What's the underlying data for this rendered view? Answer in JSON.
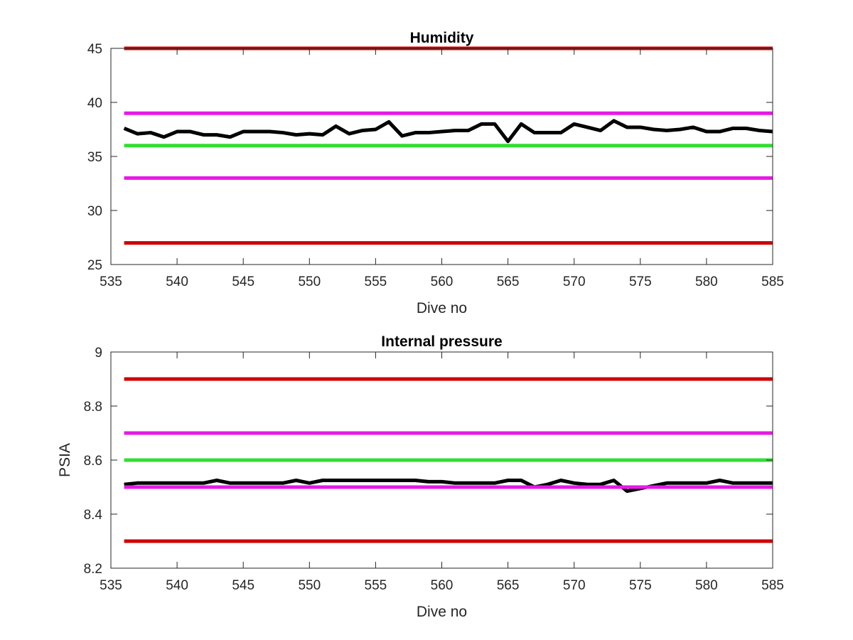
{
  "chart_data": [
    {
      "type": "line",
      "title": "Humidity",
      "xlabel": "Dive no",
      "ylabel": "",
      "xlim": [
        535,
        585
      ],
      "ylim": [
        25,
        45
      ],
      "xticks": [
        535,
        540,
        545,
        550,
        555,
        560,
        565,
        570,
        575,
        580,
        585
      ],
      "yticks": [
        25,
        30,
        35,
        40,
        45
      ],
      "grid": false,
      "reference_lines": [
        {
          "y": 45,
          "color": "#cc0000",
          "x": [
            536,
            585
          ]
        },
        {
          "y": 39,
          "color": "#e619e6",
          "x": [
            536,
            585
          ]
        },
        {
          "y": 36,
          "color": "#33dd33",
          "x": [
            536,
            585
          ]
        },
        {
          "y": 33,
          "color": "#e619e6",
          "x": [
            536,
            585
          ]
        },
        {
          "y": 27,
          "color": "#cc0000",
          "x": [
            536,
            585
          ]
        }
      ],
      "series": [
        {
          "color": "#000000",
          "x": [
            536,
            537,
            538,
            539,
            540,
            541,
            542,
            543,
            544,
            545,
            546,
            547,
            548,
            549,
            550,
            551,
            552,
            553,
            554,
            555,
            556,
            557,
            558,
            559,
            560,
            561,
            562,
            563,
            564,
            565,
            566,
            567,
            568,
            569,
            570,
            571,
            572,
            573,
            574,
            575,
            576,
            577,
            578,
            579,
            580,
            581,
            582,
            583,
            584,
            585
          ],
          "values": [
            37.6,
            37.1,
            37.2,
            36.8,
            37.3,
            37.3,
            37.0,
            37.0,
            36.8,
            37.3,
            37.3,
            37.3,
            37.2,
            37.0,
            37.1,
            37.0,
            37.8,
            37.1,
            37.4,
            37.5,
            38.2,
            36.9,
            37.2,
            37.2,
            37.3,
            37.4,
            37.4,
            38.0,
            38.0,
            36.4,
            38.0,
            37.2,
            37.2,
            37.2,
            38.0,
            37.7,
            37.4,
            38.3,
            37.7,
            37.7,
            37.5,
            37.4,
            37.5,
            37.7,
            37.3,
            37.3,
            37.6,
            37.6,
            37.4,
            37.3
          ]
        }
      ]
    },
    {
      "type": "line",
      "title": "Internal pressure",
      "xlabel": "Dive no",
      "ylabel": "PSIA",
      "xlim": [
        535,
        585
      ],
      "ylim": [
        8.2,
        9
      ],
      "xticks": [
        535,
        540,
        545,
        550,
        555,
        560,
        565,
        570,
        575,
        580,
        585
      ],
      "yticks": [
        8.2,
        8.4,
        8.6,
        8.8,
        9
      ],
      "grid": false,
      "reference_lines": [
        {
          "y": 8.9,
          "color": "#cc0000",
          "x": [
            536,
            585
          ]
        },
        {
          "y": 8.7,
          "color": "#e619e6",
          "x": [
            536,
            585
          ]
        },
        {
          "y": 8.6,
          "color": "#33dd33",
          "x": [
            536,
            585
          ]
        },
        {
          "y": 8.3,
          "color": "#cc0000",
          "x": [
            536,
            585
          ]
        }
      ],
      "series": [
        {
          "color": "#000000",
          "x": [
            536,
            537,
            538,
            539,
            540,
            541,
            542,
            543,
            544,
            545,
            546,
            547,
            548,
            549,
            550,
            551,
            552,
            553,
            554,
            555,
            556,
            557,
            558,
            559,
            560,
            561,
            562,
            563,
            564,
            565,
            566,
            567,
            568,
            569,
            570,
            571,
            572,
            573,
            574,
            575,
            576,
            577,
            578,
            579,
            580,
            581,
            582,
            583,
            584,
            585
          ],
          "values": [
            8.51,
            8.515,
            8.515,
            8.515,
            8.515,
            8.515,
            8.515,
            8.525,
            8.515,
            8.515,
            8.515,
            8.515,
            8.515,
            8.525,
            8.515,
            8.525,
            8.525,
            8.525,
            8.525,
            8.525,
            8.525,
            8.525,
            8.525,
            8.52,
            8.52,
            8.515,
            8.515,
            8.515,
            8.515,
            8.525,
            8.525,
            8.5,
            8.51,
            8.525,
            8.515,
            8.51,
            8.51,
            8.525,
            8.485,
            8.495,
            8.505,
            8.515,
            8.515,
            8.515,
            8.515,
            8.525,
            8.515,
            8.515,
            8.515,
            8.515
          ]
        }
      ],
      "reference_lines_front": [
        {
          "y": 8.5,
          "color": "#e619e6",
          "x": [
            536,
            585
          ]
        }
      ]
    }
  ]
}
